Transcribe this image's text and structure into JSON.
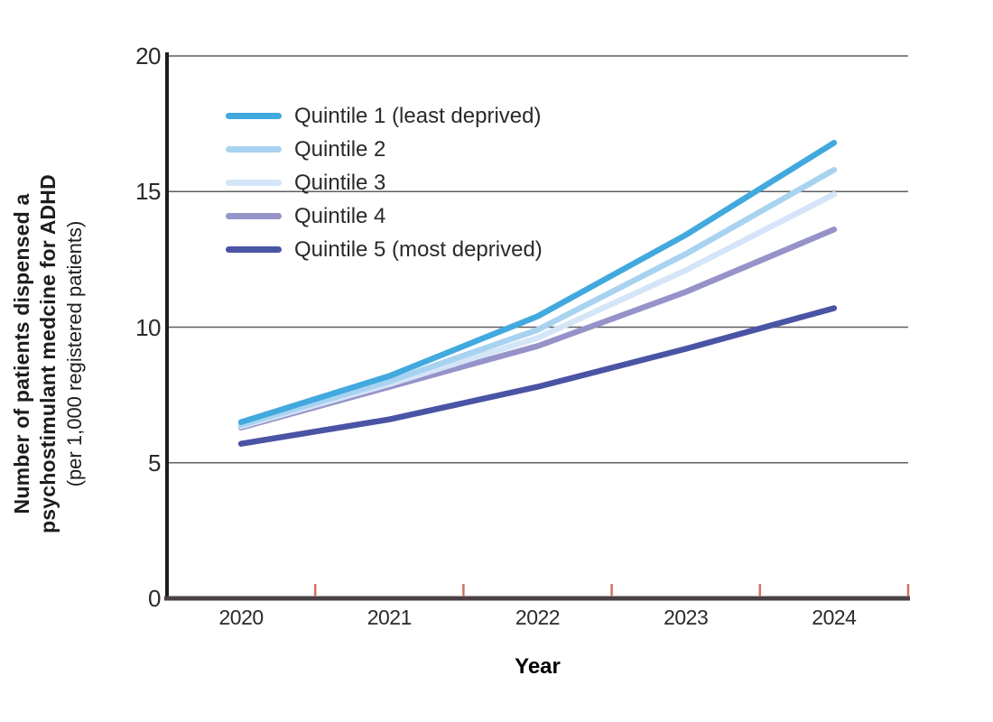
{
  "chart_data": {
    "type": "line",
    "x": [
      2020,
      2021,
      2022,
      2023,
      2024
    ],
    "x_tick_labels": [
      "2020",
      "2021",
      "2022",
      "2023",
      "2024"
    ],
    "series": [
      {
        "name": "Quintile 1 (least deprived)",
        "color": "#41a9de",
        "values": [
          6.5,
          8.2,
          10.4,
          13.4,
          16.8
        ]
      },
      {
        "name": "Quintile 2",
        "color": "#a8d3f0",
        "values": [
          6.4,
          8.0,
          9.9,
          12.7,
          15.8
        ]
      },
      {
        "name": "Quintile 3",
        "color": "#d4e5f7",
        "values": [
          6.35,
          7.9,
          9.6,
          12.1,
          14.9
        ]
      },
      {
        "name": "Quintile 4",
        "color": "#9693c9",
        "values": [
          6.3,
          7.8,
          9.3,
          11.3,
          13.6
        ]
      },
      {
        "name": "Quintile 5 (most deprived)",
        "color": "#4a54a5",
        "values": [
          5.7,
          6.6,
          7.8,
          9.2,
          10.7
        ]
      }
    ],
    "xlabel": "Year",
    "ylabel_lines": [
      "Number of patients dispensed a",
      "psychostimulant medcine for ADHD"
    ],
    "ylabel_sub": "(per 1,000 registered patients)",
    "ylim": [
      0,
      20
    ],
    "yticks": [
      0,
      5,
      10,
      15,
      20
    ],
    "grid": "horizontal gridlines at 5, 10, 15, 20",
    "legend_position": "inside top-left"
  },
  "colors": {
    "grid_line": "#5f5f5f",
    "y_axis": "#1d1d1b",
    "x_axis": "#4a4144",
    "x_tick_mark": "#cf7266",
    "text": "#2b2a29"
  }
}
